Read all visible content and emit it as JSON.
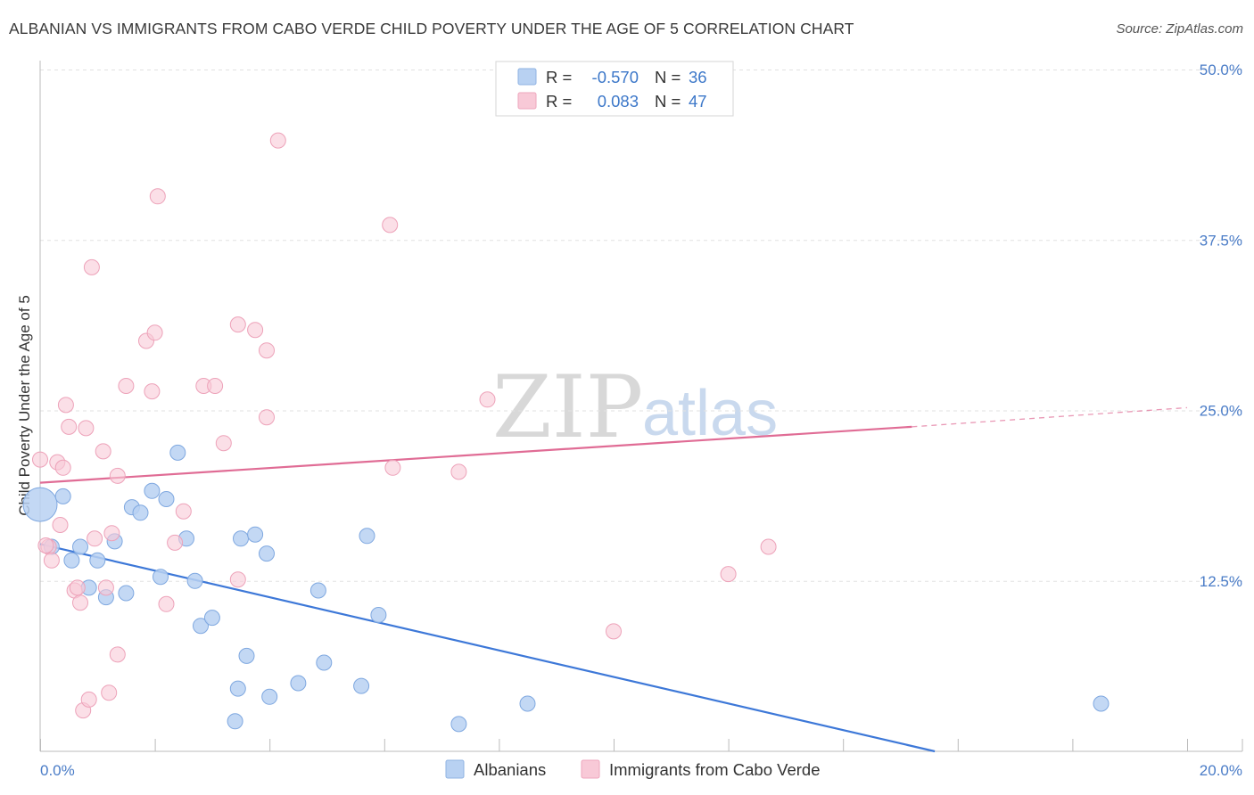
{
  "header": {
    "title": "ALBANIAN VS IMMIGRANTS FROM CABO VERDE CHILD POVERTY UNDER THE AGE OF 5 CORRELATION CHART",
    "source": "Source: ZipAtlas.com"
  },
  "watermark": {
    "part1": "ZIP",
    "part2": "atlas"
  },
  "colors": {
    "blue": "#3d78d8",
    "blue_fill": "#b8d1f2",
    "pink": "#e06c95",
    "pink_fill": "#f8c9d7",
    "tick": "#4a7cc7"
  },
  "legend": {
    "rows": [
      {
        "r_label": "R =",
        "r_value": "-0.570",
        "n_label": "N =",
        "n_value": "36"
      },
      {
        "r_label": "R =",
        "r_value": "0.083",
        "n_label": "N =",
        "n_value": "47"
      }
    ]
  },
  "chart_data": {
    "type": "scatter",
    "title": "ALBANIAN VS IMMIGRANTS FROM CABO VERDE CHILD POVERTY UNDER THE AGE OF 5 CORRELATION CHART",
    "xlabel": "",
    "ylabel": "Child Poverty Under the Age of 5",
    "xlim": [
      0,
      20
    ],
    "ylim": [
      0,
      50
    ],
    "x_tick_labels": [
      "0.0%",
      "20.0%"
    ],
    "y_ticks": [
      12.5,
      25.0,
      37.5,
      50.0
    ],
    "y_tick_labels": [
      "12.5%",
      "25.0%",
      "37.5%",
      "50.0%"
    ],
    "grid": true,
    "legend_position": "bottom",
    "series": [
      {
        "name": "Albanians",
        "color": "#3d78d8",
        "r": "-0.570",
        "n": "36",
        "trend": {
          "x_start": 0,
          "y_start": 15.2,
          "x_end": 15.6,
          "y_end": 0
        },
        "points": [
          [
            0.0,
            18.1
          ],
          [
            0.4,
            18.7
          ],
          [
            0.2,
            15.0
          ],
          [
            0.7,
            15.0
          ],
          [
            0.55,
            14.0
          ],
          [
            1.0,
            14.0
          ],
          [
            1.3,
            15.4
          ],
          [
            0.85,
            12.0
          ],
          [
            1.15,
            11.3
          ],
          [
            1.5,
            11.6
          ],
          [
            1.6,
            17.9
          ],
          [
            1.75,
            17.5
          ],
          [
            1.95,
            19.1
          ],
          [
            2.2,
            18.5
          ],
          [
            2.4,
            21.9
          ],
          [
            2.1,
            12.8
          ],
          [
            2.55,
            15.6
          ],
          [
            2.7,
            12.5
          ],
          [
            2.8,
            9.2
          ],
          [
            3.0,
            9.8
          ],
          [
            3.45,
            4.6
          ],
          [
            3.4,
            2.2
          ],
          [
            3.5,
            15.6
          ],
          [
            3.6,
            7.0
          ],
          [
            3.75,
            15.9
          ],
          [
            3.95,
            14.5
          ],
          [
            4.0,
            4.0
          ],
          [
            4.5,
            5.0
          ],
          [
            4.85,
            11.8
          ],
          [
            4.95,
            6.5
          ],
          [
            5.6,
            4.8
          ],
          [
            5.7,
            15.8
          ],
          [
            5.9,
            10.0
          ],
          [
            7.3,
            2.0
          ],
          [
            8.5,
            3.5
          ],
          [
            18.5,
            3.5
          ]
        ]
      },
      {
        "name": "Immigrants from Cabo Verde",
        "color": "#e06c95",
        "r": "0.083",
        "n": "47",
        "trend": {
          "x_start": 0,
          "y_start": 19.7,
          "x_end": 15.2,
          "y_end": 23.8,
          "dash_end_x": 20,
          "dash_end_y": 25.2
        },
        "points": [
          [
            0.0,
            21.4
          ],
          [
            0.15,
            15.0
          ],
          [
            0.2,
            14.0
          ],
          [
            0.3,
            21.2
          ],
          [
            0.35,
            16.6
          ],
          [
            0.4,
            20.8
          ],
          [
            0.45,
            25.4
          ],
          [
            0.5,
            23.8
          ],
          [
            0.6,
            11.8
          ],
          [
            0.65,
            12.0
          ],
          [
            0.7,
            10.9
          ],
          [
            0.75,
            3.0
          ],
          [
            0.8,
            23.7
          ],
          [
            0.85,
            3.8
          ],
          [
            0.9,
            35.5
          ],
          [
            0.95,
            15.6
          ],
          [
            1.1,
            22.0
          ],
          [
            1.15,
            12.0
          ],
          [
            1.2,
            4.3
          ],
          [
            1.25,
            16.0
          ],
          [
            1.35,
            20.2
          ],
          [
            1.35,
            7.1
          ],
          [
            1.5,
            26.8
          ],
          [
            1.85,
            30.1
          ],
          [
            1.95,
            26.4
          ],
          [
            2.0,
            30.7
          ],
          [
            2.05,
            40.7
          ],
          [
            2.2,
            10.8
          ],
          [
            2.35,
            15.3
          ],
          [
            2.5,
            17.6
          ],
          [
            2.85,
            26.8
          ],
          [
            3.05,
            26.8
          ],
          [
            3.2,
            22.6
          ],
          [
            3.45,
            31.3
          ],
          [
            3.45,
            12.6
          ],
          [
            3.75,
            30.9
          ],
          [
            3.95,
            29.4
          ],
          [
            3.95,
            24.5
          ],
          [
            4.15,
            44.8
          ],
          [
            6.1,
            38.6
          ],
          [
            6.15,
            20.8
          ],
          [
            7.3,
            20.5
          ],
          [
            7.8,
            25.8
          ],
          [
            10.0,
            8.8
          ],
          [
            12.0,
            13.0
          ],
          [
            12.7,
            15.0
          ],
          [
            0.1,
            15.1
          ]
        ]
      }
    ]
  }
}
